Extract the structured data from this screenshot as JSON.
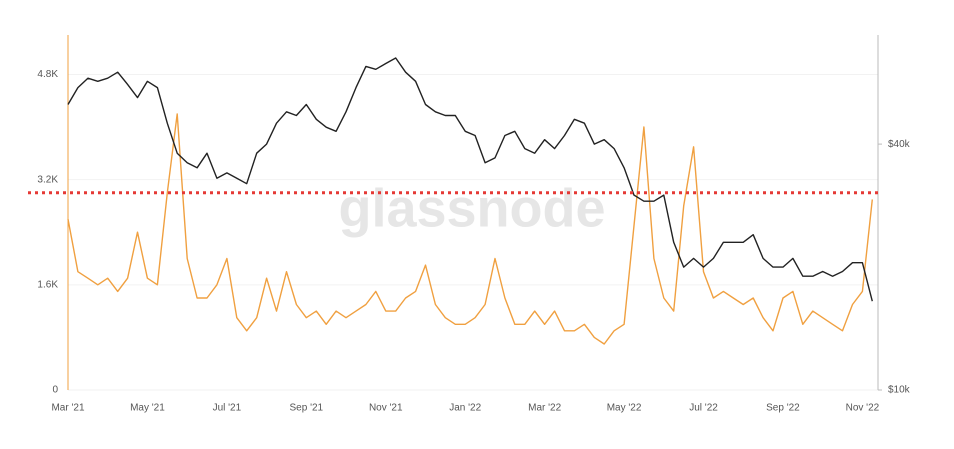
{
  "chart_data": {
    "type": "line",
    "watermark": "glassnode",
    "categories": [
      "Mar '21",
      null,
      null,
      null,
      null,
      null,
      null,
      null,
      "May '21",
      null,
      null,
      null,
      null,
      null,
      null,
      null,
      "Jul '21",
      null,
      null,
      null,
      null,
      null,
      null,
      null,
      "Sep '21",
      null,
      null,
      null,
      null,
      null,
      null,
      null,
      "Nov '21",
      null,
      null,
      null,
      null,
      null,
      null,
      null,
      "Jan '22",
      null,
      null,
      null,
      null,
      null,
      null,
      null,
      "Mar '22",
      null,
      null,
      null,
      null,
      null,
      null,
      null,
      "May '22",
      null,
      null,
      null,
      null,
      null,
      null,
      null,
      "Jul '22",
      null,
      null,
      null,
      null,
      null,
      null,
      null,
      "Sep '22",
      null,
      null,
      null,
      null,
      null,
      null,
      null,
      "Nov '22",
      null
    ],
    "series": [
      {
        "color": "#f0a040",
        "values": [
          2600,
          1800,
          1700,
          1600,
          1700,
          1500,
          1700,
          2400,
          1700,
          1600,
          3000,
          4200,
          2000,
          1400,
          1400,
          1600,
          2000,
          1100,
          900,
          1100,
          1700,
          1200,
          1800,
          1300,
          1100,
          1200,
          1000,
          1200,
          1100,
          1200,
          1300,
          1500,
          1200,
          1200,
          1400,
          1500,
          1900,
          1300,
          1100,
          1000,
          1000,
          1100,
          1300,
          2000,
          1400,
          1000,
          1000,
          1200,
          1000,
          1200,
          900,
          900,
          1000,
          800,
          700,
          900,
          1000,
          2500,
          4000,
          2000,
          1400,
          1200,
          2800,
          3700,
          1800,
          1400,
          1500,
          1400,
          1300,
          1400,
          1100,
          900,
          1400,
          1500,
          1000,
          1200,
          1100,
          1000,
          900,
          1300,
          1500,
          2900
        ]
      },
      {
        "color": "#222222",
        "axis": "y2",
        "values": [
          50000,
          55000,
          58000,
          57000,
          58000,
          60000,
          56000,
          52000,
          57000,
          55000,
          45000,
          38000,
          36000,
          35000,
          38000,
          33000,
          34000,
          33000,
          32000,
          38000,
          40000,
          45000,
          48000,
          47000,
          50000,
          46000,
          44000,
          43000,
          48000,
          55000,
          62000,
          61000,
          63000,
          65000,
          60000,
          57000,
          50000,
          48000,
          47000,
          47000,
          43000,
          42000,
          36000,
          37000,
          42000,
          43000,
          39000,
          38000,
          41000,
          39000,
          42000,
          46000,
          45000,
          40000,
          41000,
          39000,
          35000,
          30000,
          29000,
          29000,
          30000,
          23000,
          20000,
          21000,
          20000,
          21000,
          23000,
          23000,
          23000,
          24000,
          21000,
          20000,
          20000,
          21000,
          19000,
          19000,
          19500,
          19000,
          19500,
          20500,
          20500,
          16500
        ]
      }
    ],
    "ylim": [
      0,
      5400
    ],
    "yticks": [
      0,
      {
        "value": 1600,
        "label": "1.6K"
      },
      {
        "value": 3200,
        "label": "3.2K"
      },
      {
        "value": 4800,
        "label": "4.8K"
      }
    ],
    "y2lim": [
      10000,
      74000
    ],
    "y2scale": "log",
    "y2ticks": [
      {
        "value": 10000,
        "label": "$10k"
      },
      {
        "value": 40000,
        "label": "$40k"
      }
    ],
    "reference_line": {
      "value": 3000,
      "color": "#e53935"
    },
    "grid": true
  }
}
